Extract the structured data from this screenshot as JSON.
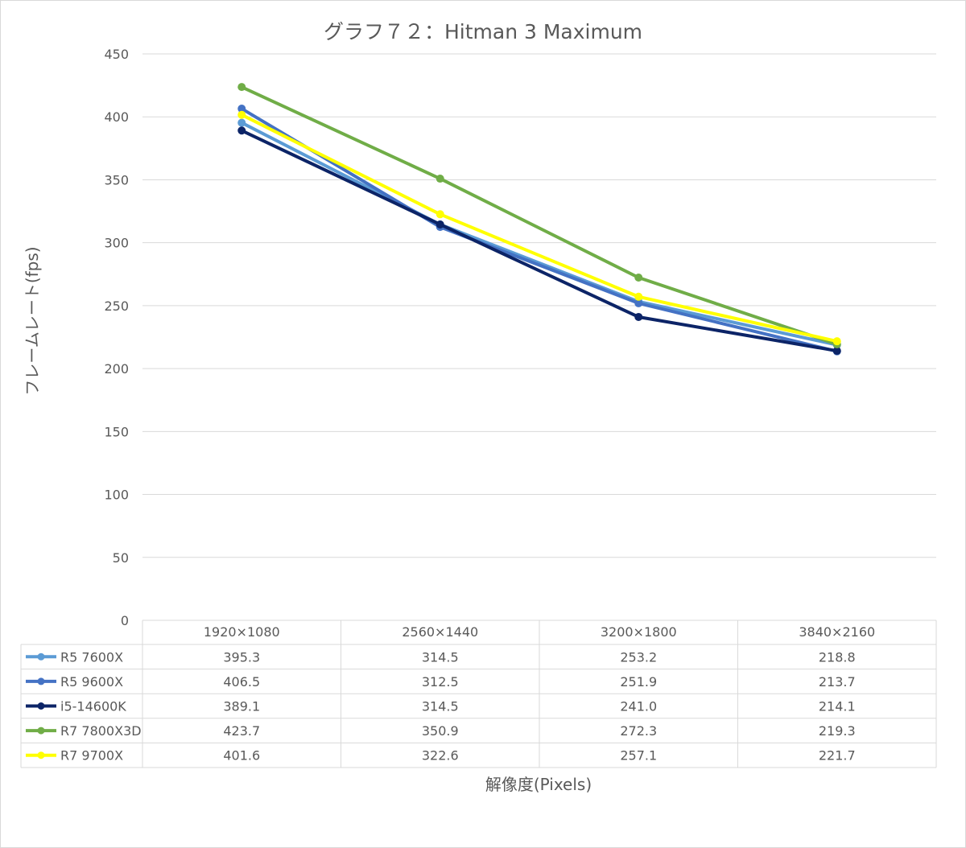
{
  "chart_data": {
    "type": "line",
    "title": "グラフ７２：Hitman 3 Maximum",
    "xlabel": "解像度(Pixels)",
    "ylabel": "フレームレート(fps)",
    "ylim": [
      0,
      450
    ],
    "yticks": [
      "0",
      "50",
      "100",
      "150",
      "200",
      "250",
      "300",
      "350",
      "400",
      "450"
    ],
    "categories": [
      "1920×1080",
      "2560×1440",
      "3200×1800",
      "3840×2160"
    ],
    "grid": true,
    "legend": "data-table",
    "series": [
      {
        "name": "R5 7600X",
        "color": "#5B9BD5",
        "values": [
          395.3,
          314.5,
          253.2,
          218.8
        ],
        "labels": [
          "395.3",
          "314.5",
          "253.2",
          "218.8"
        ]
      },
      {
        "name": "R5 9600X",
        "color": "#4472C4",
        "values": [
          406.5,
          312.5,
          251.9,
          213.7
        ],
        "labels": [
          "406.5",
          "312.5",
          "251.9",
          "213.7"
        ]
      },
      {
        "name": "i5-14600K",
        "color": "#0C2467",
        "values": [
          389.1,
          314.5,
          241.0,
          214.1
        ],
        "labels": [
          "389.1",
          "314.5",
          "241.0",
          "214.1"
        ]
      },
      {
        "name": "R7 7800X3D",
        "color": "#70AD47",
        "values": [
          423.7,
          350.9,
          272.3,
          219.3
        ],
        "labels": [
          "423.7",
          "350.9",
          "272.3",
          "219.3"
        ]
      },
      {
        "name": "R7 9700X",
        "color": "#FFFF00",
        "values": [
          401.6,
          322.6,
          257.1,
          221.7
        ],
        "labels": [
          "401.6",
          "322.6",
          "257.1",
          "221.7"
        ]
      }
    ]
  }
}
